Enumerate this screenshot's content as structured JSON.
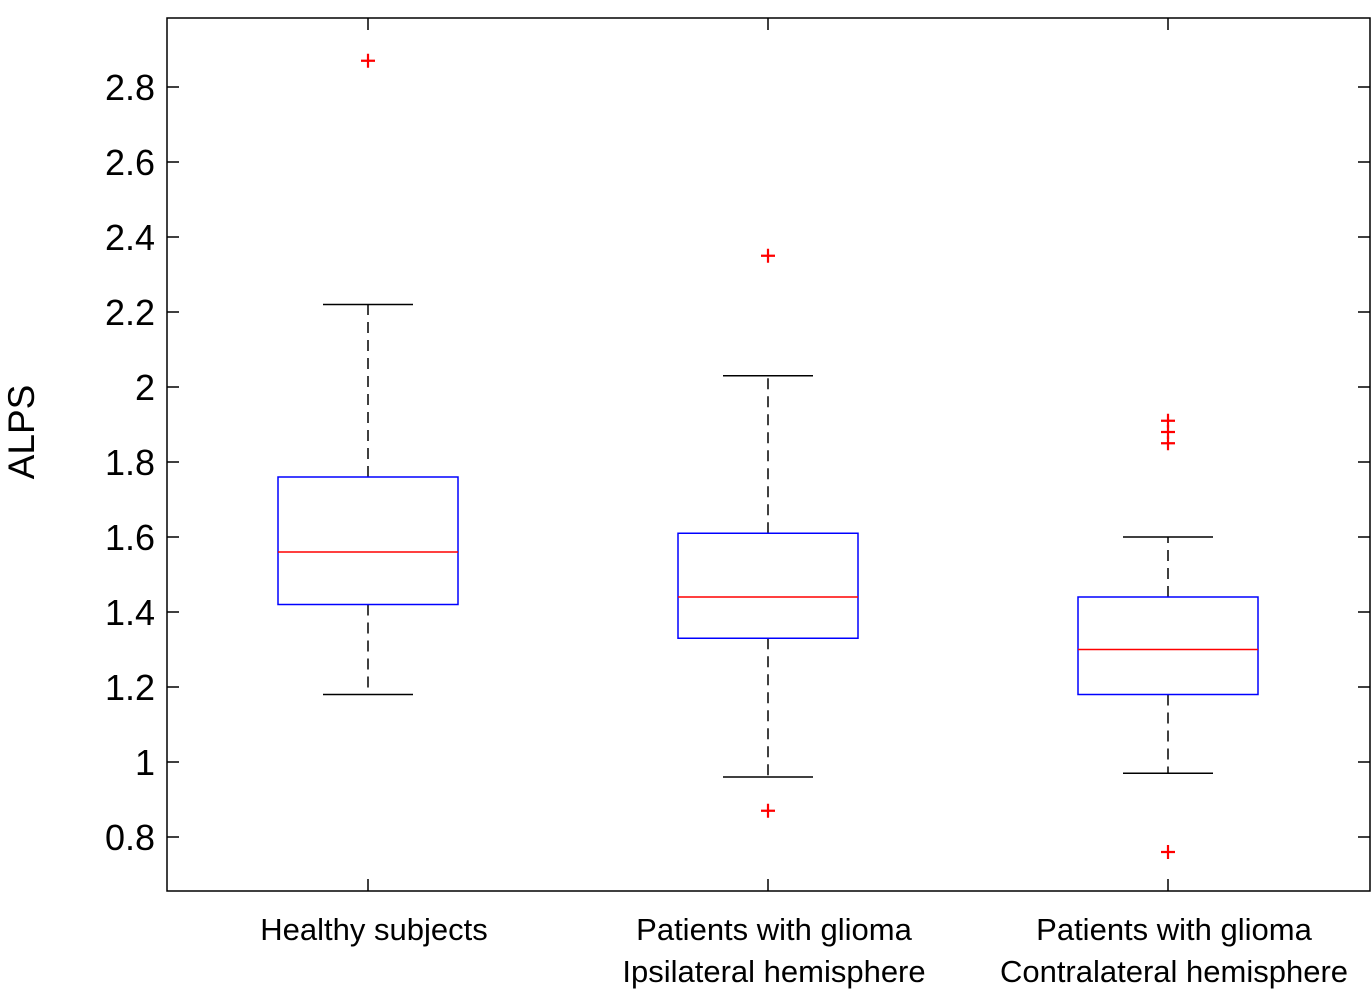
{
  "chart_data": {
    "type": "boxplot",
    "ylabel": "ALPS",
    "xlabel": "",
    "ylim": [
      0.68,
      2.98
    ],
    "yticks": [
      0.8,
      1,
      1.2,
      1.4,
      1.6,
      1.8,
      2,
      2.2,
      2.4,
      2.6,
      2.8
    ],
    "ytick_labels": [
      "0.8",
      "1",
      "1.2",
      "1.4",
      "1.6",
      "1.8",
      "2",
      "2.2",
      "2.4",
      "2.6",
      "2.8"
    ],
    "grid": false,
    "colors": {
      "box": "#0000ff",
      "median": "#ff0000",
      "whisker": "#000000",
      "outlier": "#ff0000",
      "axis": "#000000"
    },
    "groups": [
      {
        "label_lines": [
          "Healthy subjects"
        ],
        "whisker_low": 1.18,
        "q1": 1.42,
        "median": 1.56,
        "q3": 1.76,
        "whisker_high": 2.22,
        "outliers": [
          2.87
        ]
      },
      {
        "label_lines": [
          "Patients with glioma",
          "Ipsilateral hemisphere"
        ],
        "whisker_low": 0.96,
        "q1": 1.33,
        "median": 1.44,
        "q3": 1.61,
        "whisker_high": 2.03,
        "outliers": [
          2.35,
          0.87
        ]
      },
      {
        "label_lines": [
          "Patients with glioma",
          "Contralateral hemisphere"
        ],
        "whisker_low": 0.97,
        "q1": 1.18,
        "median": 1.3,
        "q3": 1.44,
        "whisker_high": 1.6,
        "outliers": [
          1.91,
          1.88,
          1.85,
          0.76
        ]
      }
    ]
  }
}
